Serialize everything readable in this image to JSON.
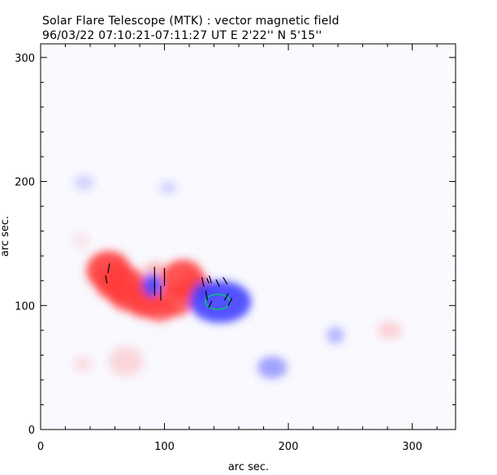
{
  "title": "Solar Flare Telescope (MTK) : vector magnetic field",
  "subtitle": "96/03/22  07:10:21-07:11:27 UT     E 2'22''   N 5'15''",
  "axes": {
    "x": {
      "label": "arc sec.",
      "ticks": [
        0,
        100,
        200,
        300
      ],
      "range": [
        0,
        335
      ]
    },
    "y": {
      "label": "arc sec.",
      "ticks": [
        0,
        100,
        200,
        300
      ],
      "range": [
        0,
        311
      ]
    }
  },
  "colors": {
    "positive_polarity": "#ff3c3c",
    "negative_polarity": "#3c3cff",
    "contour": "#00c878",
    "vector": "#000000",
    "frame": "#000000"
  },
  "features": [
    {
      "polarity": "positive",
      "label": "",
      "center": [
        68,
        125
      ]
    },
    {
      "polarity": "negative",
      "label": "",
      "center": [
        92,
        116
      ]
    },
    {
      "polarity": "negative",
      "label": "",
      "center": [
        145,
        103
      ]
    }
  ]
}
